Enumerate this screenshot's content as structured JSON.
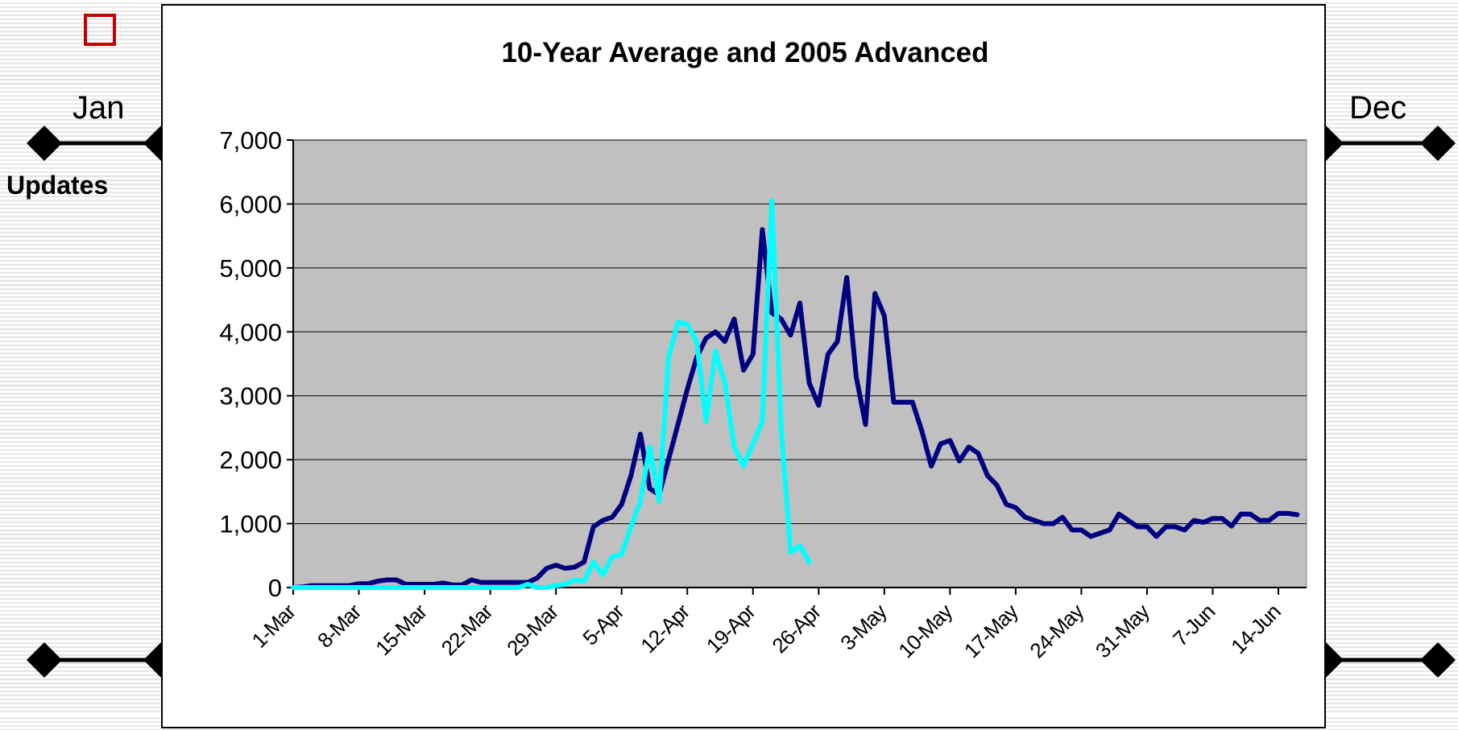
{
  "slide": {
    "left_month": "Jan",
    "right_month": "Dec",
    "updates_label": "Updates",
    "accent_color": "#c00000"
  },
  "chart_data": {
    "type": "line",
    "title": "10-Year Average and 2005 Advanced",
    "xlabel": "",
    "ylabel": "",
    "ylim": [
      0,
      7000
    ],
    "yticks": [
      0,
      1000,
      2000,
      3000,
      4000,
      5000,
      6000,
      7000
    ],
    "ytick_labels": [
      "0",
      "1,000",
      "2,000",
      "3,000",
      "4,000",
      "5,000",
      "6,000",
      "7,000"
    ],
    "xticks": [
      "1-Mar",
      "8-Mar",
      "15-Mar",
      "22-Mar",
      "29-Mar",
      "5-Apr",
      "12-Apr",
      "19-Apr",
      "26-Apr",
      "3-May",
      "10-May",
      "17-May",
      "24-May",
      "31-May",
      "7-Jun",
      "14-Jun"
    ],
    "x_start": "1-Mar",
    "x_end": "18-Jun",
    "grid": true,
    "legend": "none",
    "background": "#c0c0c0",
    "series": [
      {
        "color": "#000080",
        "values": [
          0,
          10,
          30,
          30,
          30,
          30,
          30,
          60,
          60,
          100,
          120,
          120,
          50,
          50,
          50,
          50,
          70,
          40,
          40,
          120,
          80,
          80,
          80,
          80,
          80,
          80,
          150,
          300,
          350,
          300,
          320,
          400,
          950,
          1050,
          1100,
          1300,
          1750,
          2400,
          1550,
          1450,
          2000,
          2550,
          3100,
          3600,
          3900,
          4000,
          3850,
          4200,
          3400,
          3650,
          5600,
          4300,
          4200,
          3950,
          4450,
          3200,
          2850,
          3650,
          3850,
          4850,
          3300,
          2550,
          4600,
          4250,
          2900,
          2900,
          2900,
          2450,
          1900,
          2250,
          2300,
          1980,
          2200,
          2100,
          1750,
          1600,
          1300,
          1250,
          1100,
          1050,
          1000,
          1000,
          1100,
          900,
          900,
          800,
          850,
          900,
          1150,
          1050,
          950,
          950,
          800,
          950,
          950,
          900,
          1050,
          1020,
          1080,
          1080,
          960,
          1150,
          1150,
          1050,
          1050,
          1160,
          1160,
          1140
        ]
      },
      {
        "color": "#00ffff",
        "values": [
          0,
          0,
          0,
          0,
          0,
          0,
          0,
          0,
          0,
          0,
          0,
          0,
          0,
          0,
          0,
          0,
          0,
          0,
          0,
          0,
          0,
          0,
          0,
          0,
          0,
          50,
          0,
          0,
          30,
          50,
          120,
          100,
          400,
          200,
          480,
          520,
          950,
          1350,
          2200,
          1350,
          3600,
          4150,
          4120,
          3850,
          2600,
          3700,
          3200,
          2200,
          1900,
          2250,
          2600,
          6050,
          2500,
          550,
          650,
          400
        ]
      }
    ]
  }
}
